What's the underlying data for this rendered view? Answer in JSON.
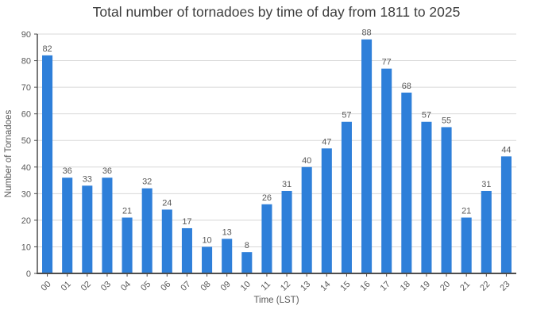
{
  "chart_data": {
    "type": "bar",
    "title": "Total number of tornadoes by time of day from 1811 to 2025",
    "xlabel": "Time (LST)",
    "ylabel": "Number of Tornadoes",
    "categories": [
      "00",
      "01",
      "02",
      "03",
      "04",
      "05",
      "06",
      "07",
      "08",
      "09",
      "10",
      "11",
      "12",
      "13",
      "14",
      "15",
      "16",
      "17",
      "18",
      "19",
      "20",
      "21",
      "22",
      "23"
    ],
    "values": [
      82,
      36,
      33,
      36,
      21,
      32,
      24,
      17,
      10,
      13,
      8,
      26,
      31,
      40,
      47,
      57,
      88,
      77,
      68,
      57,
      55,
      21,
      31,
      44
    ],
    "ylim": [
      0,
      90
    ],
    "ytick_step": 10,
    "grid": true,
    "legend_position": "none",
    "value_labels_shown": true,
    "xtick_rotation_deg": -45,
    "colors": {
      "bar": "#2E7FD9",
      "grid": "#D8D8D8",
      "axis": "#4D4D4D",
      "tick_text": "#595959",
      "value_text": "#595959",
      "title_text": "#3D3D3D",
      "background": "#FFFFFF"
    }
  }
}
